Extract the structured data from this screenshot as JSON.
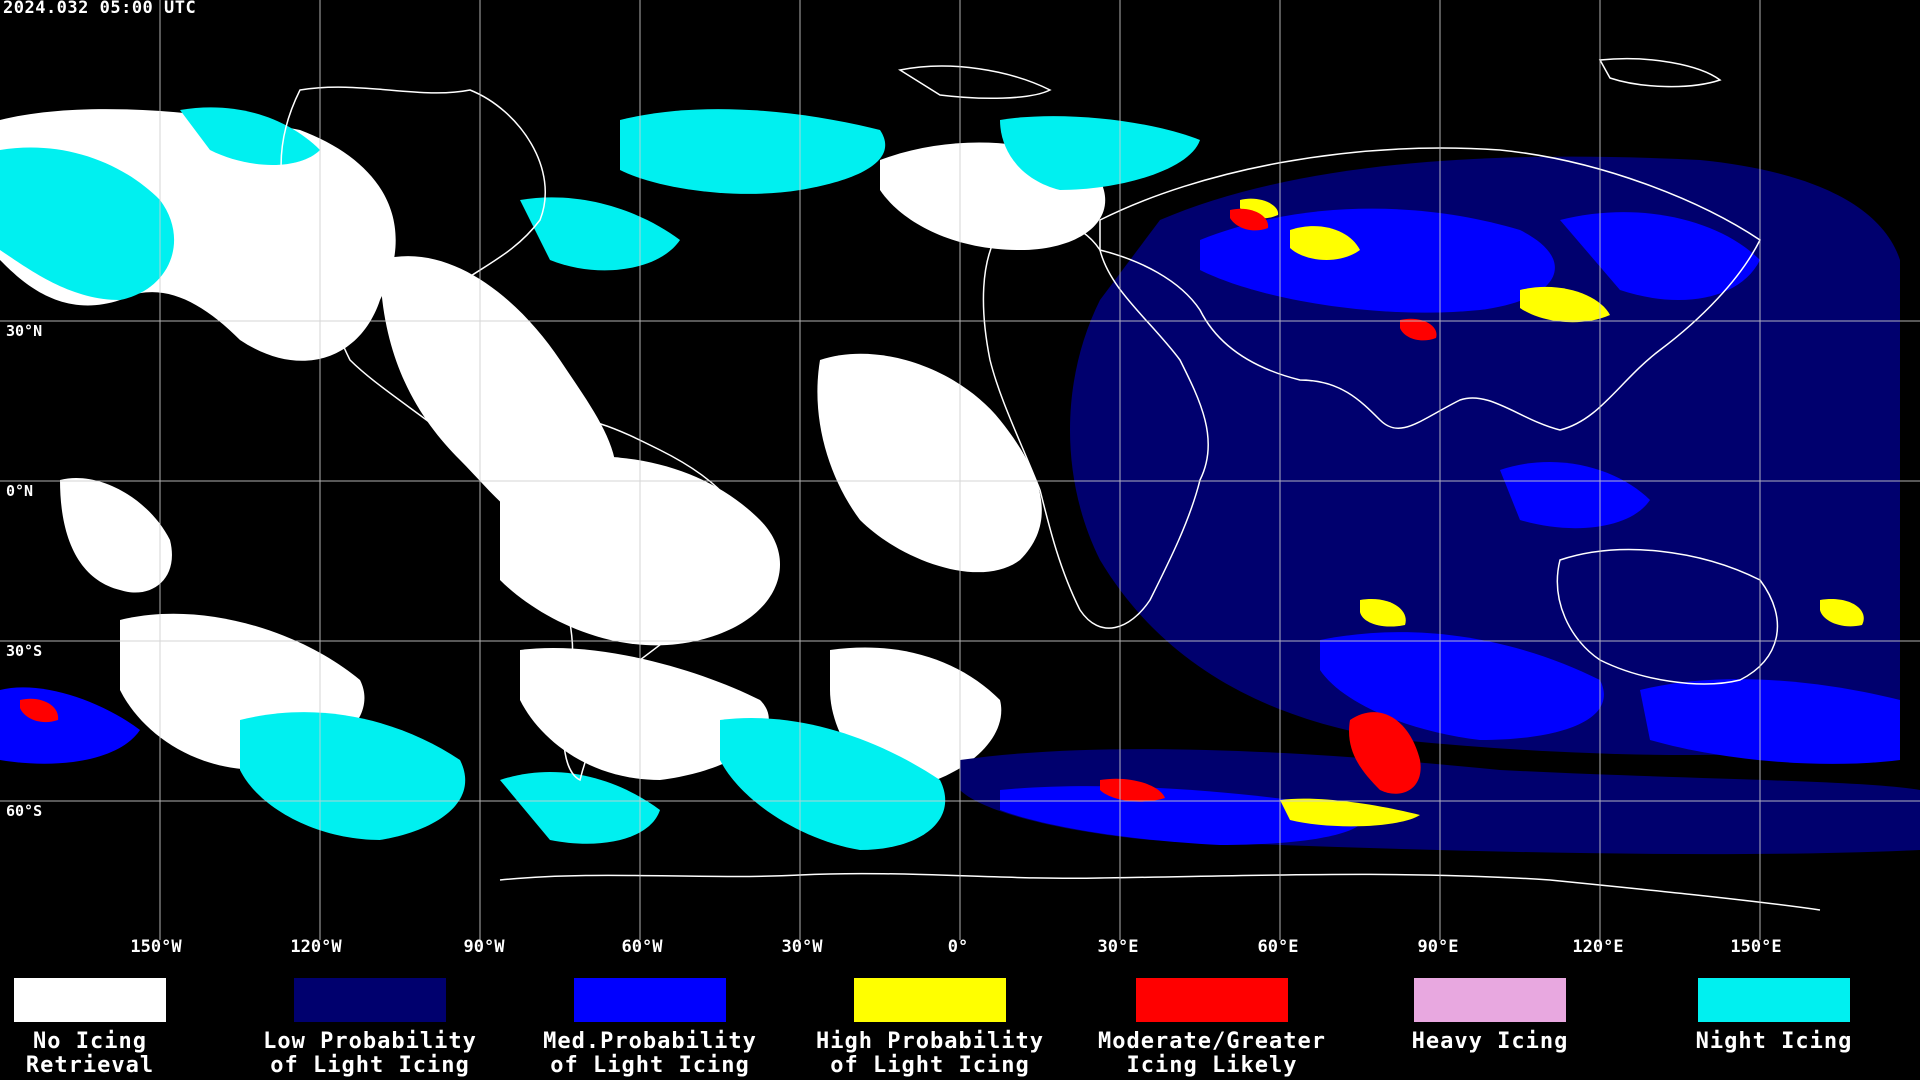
{
  "timestamp": "2024.032 05:00 UTC",
  "lat_labels": [
    "30°N",
    "0°N",
    "30°S",
    "60°S"
  ],
  "lon_labels": [
    "150°W",
    "120°W",
    "90°W",
    "60°W",
    "30°W",
    "0°",
    "30°E",
    "60°E",
    "90°E",
    "120°E",
    "150°E"
  ],
  "legend": [
    {
      "line1": "No Icing",
      "line2": "Retrieval",
      "color": "#ffffff"
    },
    {
      "line1": "Low Probability",
      "line2": "of Light Icing",
      "color": "#00006e"
    },
    {
      "line1": "Med.Probability",
      "line2": "of Light Icing",
      "color": "#0000ff"
    },
    {
      "line1": "High Probability",
      "line2": "of Light Icing",
      "color": "#ffff00"
    },
    {
      "line1": "Moderate/Greater",
      "line2": "Icing Likely",
      "color": "#ff0000"
    },
    {
      "line1": "Heavy Icing",
      "line2": "",
      "color": "#e8a8e0"
    },
    {
      "line1": "Night Icing",
      "line2": "",
      "color": "#00f0f0"
    }
  ]
}
